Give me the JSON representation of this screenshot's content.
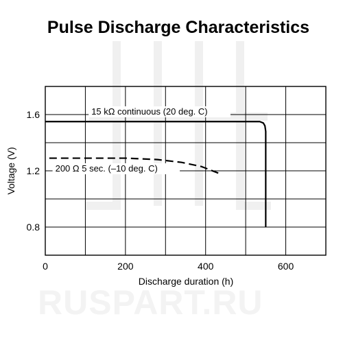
{
  "chart_data": {
    "type": "line",
    "title": "Pulse Discharge Characteristics",
    "xlabel": "Discharge duration (h)",
    "ylabel": "Voltage (V)",
    "xlim": [
      0,
      700
    ],
    "ylim": [
      0.6,
      1.8
    ],
    "xticks": [
      0,
      200,
      400,
      600
    ],
    "yticks": [
      0.8,
      1.2,
      1.6
    ],
    "grid_x": [
      0,
      100,
      200,
      300,
      400,
      500,
      600,
      700
    ],
    "grid_y": [
      0.6,
      0.8,
      1.0,
      1.2,
      1.4,
      1.6,
      1.8
    ],
    "grid": true,
    "series": [
      {
        "name": "15 kΩ continuous (20 deg. C)",
        "style": "solid",
        "x": [
          0,
          520,
          535,
          544,
          548,
          550,
          550
        ],
        "y": [
          1.55,
          1.55,
          1.55,
          1.54,
          1.52,
          1.48,
          0.8
        ],
        "label_at": [
          115,
          1.6
        ]
      },
      {
        "name": "200 Ω 5 sec. (–10 deg. C)",
        "style": "dashed",
        "x": [
          10,
          100,
          200,
          280,
          340,
          390,
          435
        ],
        "y": [
          1.29,
          1.29,
          1.29,
          1.28,
          1.26,
          1.23,
          1.18
        ],
        "label_at": [
          25,
          1.195
        ]
      }
    ],
    "watermark": "RUSPART.RU"
  },
  "colors": {
    "line": "#000000",
    "grid": "#000000",
    "watermark": "#f3f3f3"
  }
}
